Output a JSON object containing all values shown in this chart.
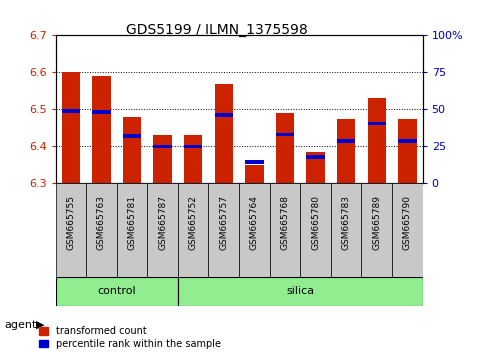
{
  "title": "GDS5199 / ILMN_1375598",
  "samples": [
    "GSM665755",
    "GSM665763",
    "GSM665781",
    "GSM665787",
    "GSM665752",
    "GSM665757",
    "GSM665764",
    "GSM665768",
    "GSM665780",
    "GSM665783",
    "GSM665789",
    "GSM665790"
  ],
  "red_values": [
    6.6,
    6.59,
    6.48,
    6.43,
    6.43,
    6.57,
    6.35,
    6.49,
    6.385,
    6.475,
    6.53,
    6.475
  ],
  "blue_values": [
    6.495,
    6.493,
    6.428,
    6.4,
    6.4,
    6.485,
    6.358,
    6.432,
    6.372,
    6.415,
    6.462,
    6.415
  ],
  "y_min": 6.3,
  "y_max": 6.7,
  "y_ticks": [
    6.3,
    6.4,
    6.5,
    6.6,
    6.7
  ],
  "y2_ticks": [
    0,
    25,
    50,
    75,
    100
  ],
  "y2_tick_labels": [
    "0",
    "25",
    "50",
    "75",
    "100%"
  ],
  "group_labels": [
    "control",
    "silica"
  ],
  "group_ranges": [
    [
      0,
      3
    ],
    [
      4,
      11
    ]
  ],
  "legend_items": [
    "transformed count",
    "percentile rank within the sample"
  ],
  "legend_colors": [
    "#cc2200",
    "#0000cc"
  ],
  "bar_width": 0.6,
  "agent_label": "agent",
  "x_bg_color": "#c8c8c8",
  "group_bg_color": "#90ee90",
  "plot_bg_color": "#ffffff",
  "title_fontsize": 10,
  "tick_color_left": "#cc2200",
  "tick_color_right": "#0000bb"
}
